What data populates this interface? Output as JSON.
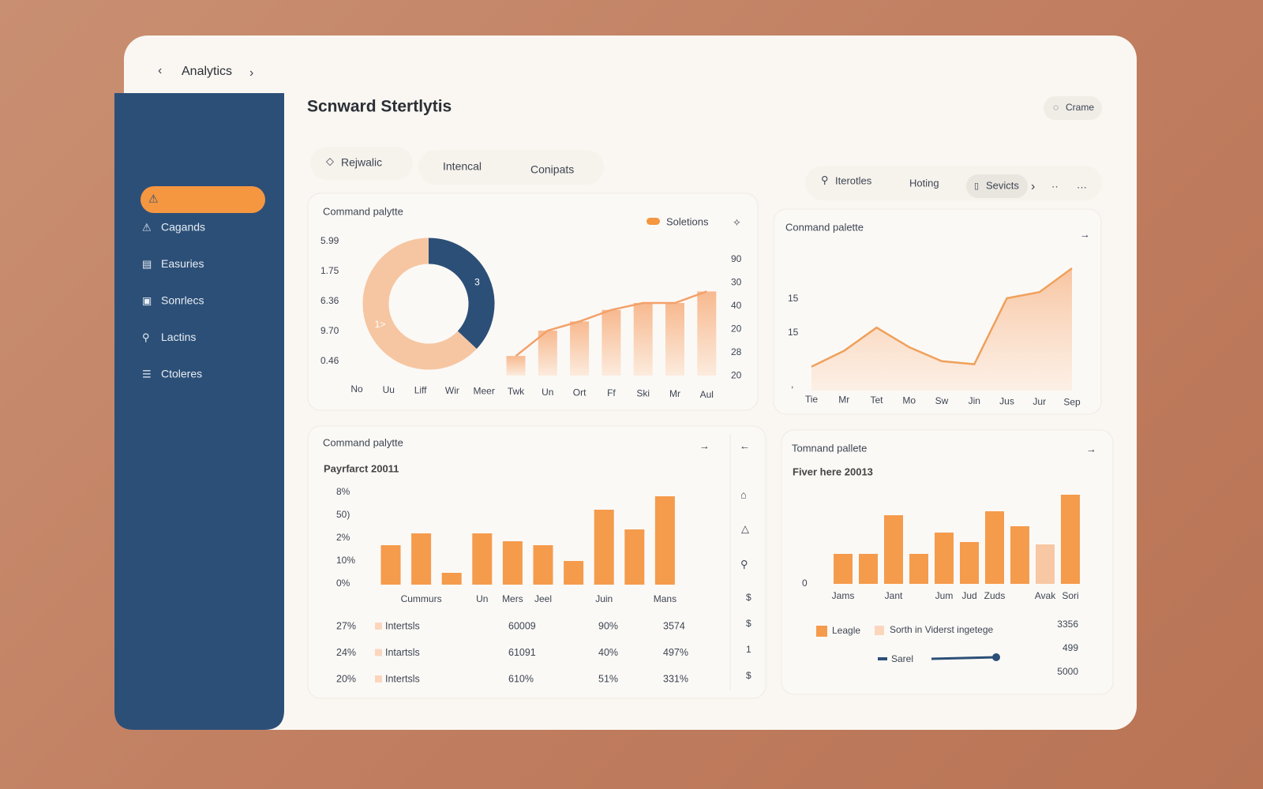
{
  "nav": {
    "title": "Analytics"
  },
  "sidebar": {
    "items": [
      "Cagands",
      "Easuries",
      "Sonrlecs",
      "Lactins",
      "Ctoleres"
    ]
  },
  "header": {
    "title": "Scnward Stertlytis",
    "button": "Crame"
  },
  "tabs": [
    "Rejwalic",
    "Intencal",
    "Conipats"
  ],
  "toolbar": [
    "Iterotles",
    "Hoting",
    "Sevicts"
  ],
  "panels": [
    {
      "title": "Command palytte",
      "legend": "Soletions",
      "axis_labels": [
        "5.99",
        "1.75",
        "6.36",
        "9.70",
        "0.46"
      ],
      "right_labels": [
        "90",
        "30",
        "40",
        "20",
        "28",
        "20"
      ],
      "donut": {
        "type": "pie",
        "values": [
          37,
          63
        ],
        "colors": [
          "#2c4f77",
          "#f6c6a2"
        ],
        "annotations": [
          "3",
          "1>"
        ]
      },
      "chart": {
        "type": "bar",
        "categories": [
          "No",
          "Uu",
          "Liff",
          "Wir",
          "Meer",
          "Twk",
          "Un",
          "Ort",
          "Ff",
          "Ski",
          "Mr",
          "Aul"
        ],
        "values": [
          null,
          null,
          null,
          null,
          null,
          17,
          39,
          47,
          57,
          63,
          63,
          73
        ],
        "ylim": [
          0,
          100
        ],
        "color": "#f3a16a"
      }
    },
    {
      "title": "Conmand palette",
      "axis_labels": [
        "15",
        "15",
        ","
      ],
      "chart": {
        "type": "line",
        "categories": [
          "Tie",
          "Mr",
          "Tet",
          "Mo",
          "Sw",
          "Jin",
          "Jus",
          "Jur",
          "Sep"
        ],
        "values": [
          3.9,
          6.5,
          10.3,
          7.1,
          4.8,
          4.3,
          15.1,
          16.1,
          20
        ],
        "ylim": [
          0,
          20
        ],
        "color": "#efa15c"
      }
    },
    {
      "title": "Command palytte",
      "subtitle": "Payrfarct 20011",
      "axis_labels": [
        "8%",
        "50)",
        "2%",
        "10%",
        "0%"
      ],
      "chart": {
        "type": "bar",
        "categories": [
          null,
          "Cummurs",
          null,
          "Un",
          "Mers",
          "Jeel",
          null,
          "Juin",
          null,
          "Mans"
        ],
        "values": [
          50,
          65,
          15,
          65,
          55,
          50,
          30,
          95,
          70,
          112
        ],
        "ylim": [
          0,
          120
        ],
        "color": "#f59b4c"
      },
      "table": {
        "rows": [
          [
            "27%",
            "Intertsls",
            "60009",
            "90%",
            "3574"
          ],
          [
            "24%",
            "Intartsls",
            "61091",
            "40%",
            "497%"
          ],
          [
            "20%",
            "Intertsls",
            "610%",
            "51%",
            "331%"
          ]
        ]
      },
      "side_icons": [
        "$",
        "$",
        "1",
        "$"
      ]
    },
    {
      "title": "Tomnand pallete",
      "subtitle": "Fiver here 20013",
      "axis_labels": [
        "0"
      ],
      "chart": {
        "type": "bar",
        "categories": [
          "Jams",
          null,
          "Jant",
          null,
          "Jum",
          "Jud",
          "Zuds",
          null,
          "Avak",
          "Sori"
        ],
        "values": [
          38,
          38,
          87,
          38,
          65,
          53,
          92,
          73,
          50,
          113
        ],
        "ylim": [
          0,
          120
        ],
        "colors": [
          "#f59b4c",
          "#f59b4c",
          "#f59b4c",
          "#f59b4c",
          "#f59b4c",
          "#f59b4c",
          "#f59b4c",
          "#f59b4c",
          "#f8c7a3",
          "#f59b4c"
        ]
      },
      "legend": [
        "Leagle",
        "Sorth in Viderst ingetege",
        "Sarel"
      ],
      "right_numbers": [
        3356,
        499,
        5000
      ]
    }
  ]
}
